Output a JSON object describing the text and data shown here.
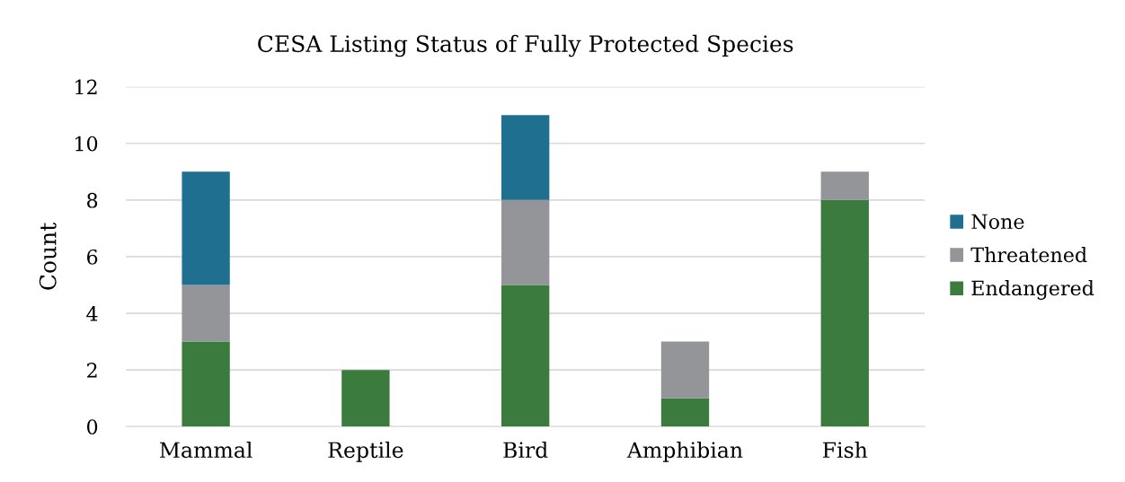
{
  "chart_data": {
    "type": "bar",
    "title": "CESA Listing Status of Fully Protected Species",
    "ylabel": "Count",
    "categories": [
      "Mammal",
      "Reptile",
      "Bird",
      "Amphibian",
      "Fish"
    ],
    "series": [
      {
        "name": "Endangered",
        "color": "#3b7b3d",
        "values": [
          3,
          2,
          5,
          1,
          8
        ]
      },
      {
        "name": "Threatened",
        "color": "#949599",
        "values": [
          2,
          0,
          3,
          2,
          1
        ]
      },
      {
        "name": "None",
        "color": "#1f7090",
        "values": [
          4,
          0,
          3,
          0,
          0
        ]
      }
    ],
    "stacked": true,
    "ylim": [
      0,
      12
    ],
    "yticks": [
      0,
      2,
      4,
      6,
      8,
      10,
      12
    ],
    "grid": "y",
    "legend": "right"
  }
}
